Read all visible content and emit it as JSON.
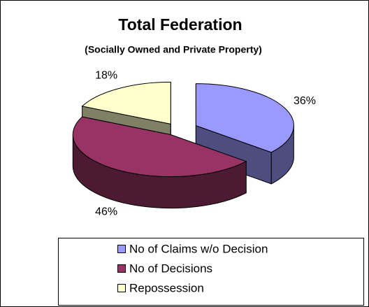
{
  "chart_data": {
    "type": "pie",
    "title": "Total Federation",
    "subtitle": "(Socially Owned and Private Property)",
    "categories": [
      "No of Claims w/o Decision",
      "No of Decisions",
      "Repossession"
    ],
    "values": [
      36,
      46,
      18
    ],
    "value_labels": [
      "36%",
      "46%",
      "18%"
    ],
    "colors": [
      "#9999ff",
      "#993366",
      "#ffffcc"
    ],
    "legend": "bottom"
  }
}
